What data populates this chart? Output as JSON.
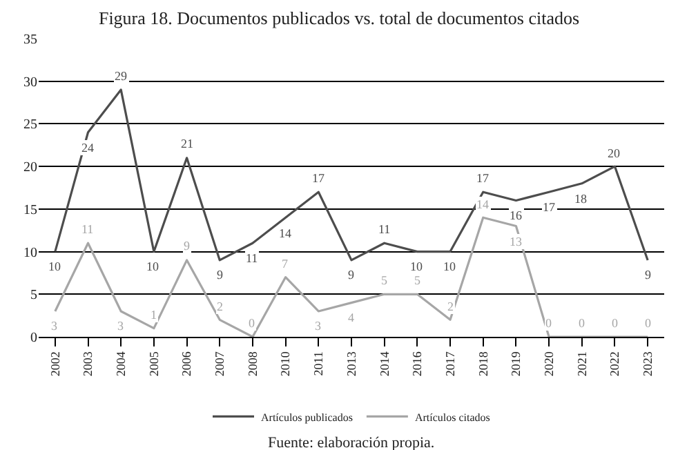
{
  "chart_data": {
    "type": "line",
    "title": "Figura 18. Documentos publicados vs. total de documentos citados",
    "categories": [
      "2002",
      "2003",
      "2004",
      "2005",
      "2006",
      "2007",
      "2008",
      "2010",
      "2011",
      "2013",
      "2014",
      "2016",
      "2017",
      "2018",
      "2019",
      "2020",
      "2021",
      "2022",
      "2023"
    ],
    "series": [
      {
        "name": "Artículos publicados",
        "color": "#4d4d4d",
        "values": [
          10,
          24,
          29,
          10,
          21,
          9,
          11,
          14,
          17,
          9,
          11,
          10,
          10,
          17,
          16,
          17,
          18,
          20,
          9
        ]
      },
      {
        "name": "Artículos citados",
        "color": "#a6a6a6",
        "values": [
          3,
          11,
          3,
          1,
          9,
          2,
          0,
          7,
          3,
          4,
          5,
          5,
          2,
          14,
          13,
          0,
          0,
          0,
          0
        ]
      }
    ],
    "ylim": [
      0,
      35
    ],
    "yticks": [
      0,
      5,
      10,
      15,
      20,
      25,
      30,
      35
    ],
    "grid": "y",
    "legend": "bottom",
    "data_labels": true,
    "marker": "none",
    "line_style": "solid",
    "annotations": [
      "Fuente: elaboración propia."
    ]
  }
}
